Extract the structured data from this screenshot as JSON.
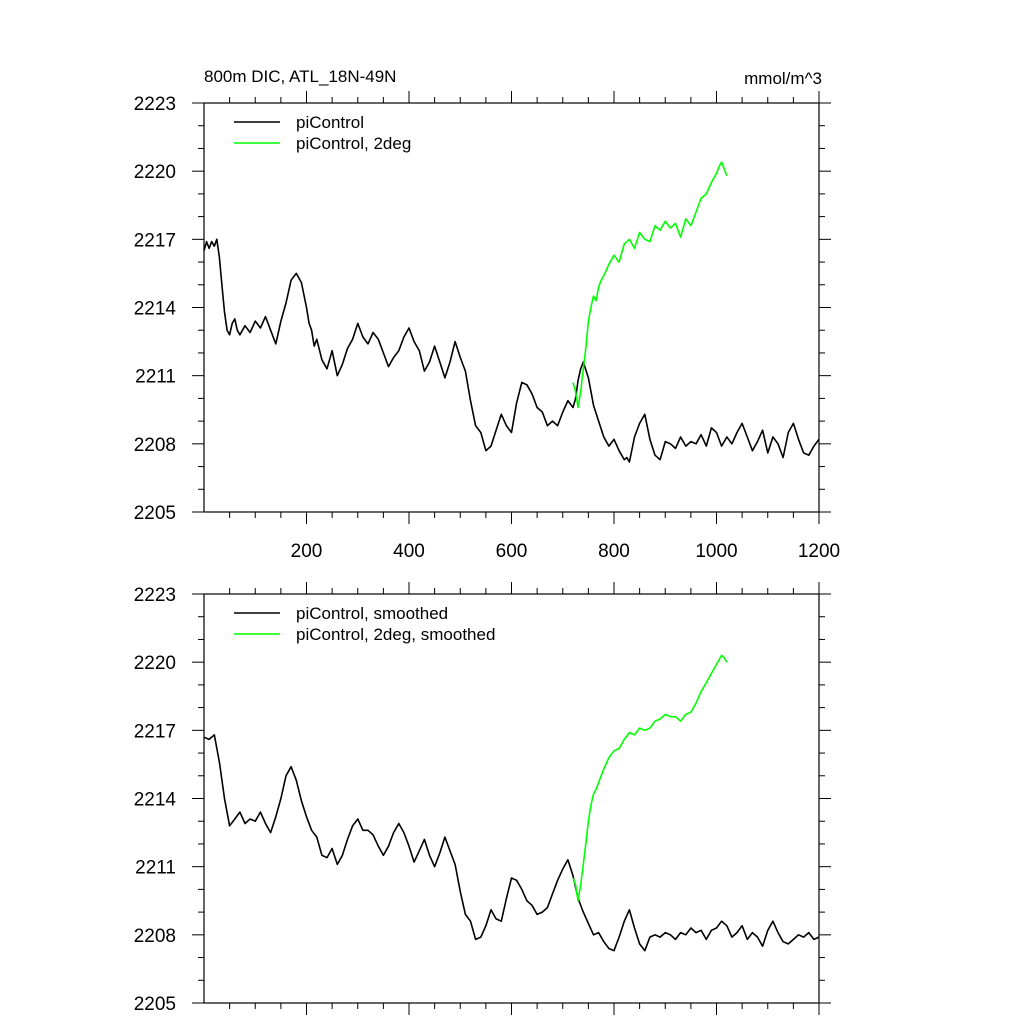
{
  "figure": {
    "title": "800m DIC, ATL_18N-49N",
    "units": "mmol/m^3"
  },
  "chart_data": [
    {
      "type": "line",
      "panel": "top",
      "title": "800m DIC, ATL_18N-49N",
      "units": "mmol/m^3",
      "xlim": [
        0,
        1200
      ],
      "ylim": [
        2205,
        2223
      ],
      "xticks": [
        200,
        400,
        600,
        800,
        1000,
        1200
      ],
      "yticks": [
        2205,
        2208,
        2211,
        2214,
        2217,
        2220,
        2223
      ],
      "legend_position": "top-left",
      "series": [
        {
          "name": "piControl",
          "color": "#000000",
          "x": [
            0,
            5,
            10,
            15,
            20,
            25,
            30,
            35,
            40,
            45,
            50,
            55,
            60,
            65,
            70,
            80,
            90,
            100,
            110,
            120,
            130,
            140,
            150,
            160,
            170,
            180,
            190,
            200,
            205,
            210,
            215,
            220,
            230,
            240,
            250,
            260,
            270,
            280,
            290,
            300,
            310,
            320,
            330,
            340,
            350,
            360,
            370,
            380,
            390,
            400,
            410,
            420,
            430,
            440,
            450,
            460,
            470,
            480,
            490,
            500,
            510,
            520,
            530,
            540,
            550,
            560,
            570,
            580,
            590,
            600,
            610,
            620,
            630,
            640,
            650,
            660,
            670,
            680,
            690,
            700,
            710,
            720,
            725,
            730,
            735,
            740,
            750,
            760,
            770,
            780,
            790,
            800,
            810,
            820,
            825,
            830,
            840,
            850,
            860,
            870,
            880,
            890,
            900,
            910,
            920,
            930,
            940,
            950,
            960,
            970,
            980,
            990,
            1000,
            1010,
            1020,
            1030,
            1040,
            1050,
            1060,
            1070,
            1080,
            1090,
            1100,
            1110,
            1120,
            1130,
            1140,
            1150,
            1160,
            1170,
            1180,
            1190,
            1200
          ],
          "values": [
            2216.5,
            2216.9,
            2216.6,
            2216.9,
            2216.7,
            2217.0,
            2216.2,
            2215.0,
            2213.8,
            2213.0,
            2212.8,
            2213.3,
            2213.5,
            2213.0,
            2212.8,
            2213.2,
            2212.9,
            2213.4,
            2213.1,
            2213.6,
            2213.0,
            2212.4,
            2213.4,
            2214.2,
            2215.2,
            2215.5,
            2215.1,
            2214.0,
            2213.3,
            2213.0,
            2212.3,
            2212.6,
            2211.7,
            2211.3,
            2212.1,
            2211.0,
            2211.5,
            2212.2,
            2212.6,
            2213.3,
            2212.7,
            2212.4,
            2212.9,
            2212.6,
            2212.0,
            2211.4,
            2211.8,
            2212.1,
            2212.7,
            2213.1,
            2212.5,
            2212.1,
            2211.2,
            2211.6,
            2212.3,
            2211.6,
            2210.9,
            2211.6,
            2212.5,
            2211.8,
            2211.2,
            2209.9,
            2208.8,
            2208.5,
            2207.7,
            2207.9,
            2208.6,
            2209.3,
            2208.8,
            2208.5,
            2209.8,
            2210.7,
            2210.6,
            2210.2,
            2209.6,
            2209.4,
            2208.8,
            2209.0,
            2208.8,
            2209.4,
            2209.9,
            2209.6,
            2210.0,
            2210.8,
            2211.3,
            2211.6,
            2210.9,
            2209.7,
            2209.0,
            2208.3,
            2207.9,
            2208.2,
            2207.7,
            2207.3,
            2207.4,
            2207.2,
            2208.3,
            2208.9,
            2209.3,
            2208.2,
            2207.5,
            2207.3,
            2208.1,
            2208.0,
            2207.8,
            2208.3,
            2207.9,
            2208.1,
            2208.0,
            2208.4,
            2207.9,
            2208.7,
            2208.5,
            2207.9,
            2208.3,
            2208.0,
            2208.5,
            2208.9,
            2208.3,
            2207.7,
            2208.1,
            2208.6,
            2207.6,
            2208.3,
            2208.0,
            2207.4,
            2208.5,
            2208.9,
            2208.2,
            2207.6,
            2207.5,
            2207.9,
            2208.2
          ],
          "note_first_segment_end": 70
        },
        {
          "name": "piControl, 2deg",
          "color": "#00ff00",
          "x": [
            720,
            725,
            730,
            735,
            740,
            745,
            750,
            755,
            760,
            765,
            770,
            775,
            780,
            790,
            800,
            810,
            820,
            830,
            840,
            850,
            860,
            870,
            880,
            890,
            900,
            910,
            920,
            930,
            940,
            950,
            960,
            970,
            980,
            990,
            1000,
            1005,
            1010,
            1015,
            1020
          ],
          "values": [
            2210.7,
            2210.3,
            2209.6,
            2210.3,
            2211.3,
            2212.2,
            2213.4,
            2214.0,
            2214.5,
            2214.3,
            2214.9,
            2215.2,
            2215.4,
            2215.9,
            2216.3,
            2216.0,
            2216.8,
            2217.0,
            2216.6,
            2217.3,
            2217.0,
            2216.9,
            2217.6,
            2217.4,
            2217.8,
            2217.5,
            2217.7,
            2217.1,
            2217.9,
            2217.6,
            2218.2,
            2218.8,
            2219.0,
            2219.5,
            2219.9,
            2220.2,
            2220.4,
            2220.1,
            2219.8
          ]
        }
      ]
    },
    {
      "type": "line",
      "panel": "bottom",
      "xlim": [
        0,
        1200
      ],
      "ylim": [
        2205,
        2223
      ],
      "xticks": [
        200,
        400,
        600,
        800,
        1000,
        1200
      ],
      "yticks": [
        2205,
        2208,
        2211,
        2214,
        2217,
        2220,
        2223
      ],
      "legend_position": "top-left",
      "series": [
        {
          "name": "piControl, smoothed",
          "color": "#000000",
          "x": [
            0,
            10,
            20,
            30,
            40,
            50,
            60,
            70,
            80,
            90,
            100,
            110,
            120,
            130,
            140,
            150,
            160,
            170,
            180,
            190,
            200,
            210,
            220,
            230,
            240,
            250,
            260,
            270,
            280,
            290,
            300,
            310,
            320,
            330,
            340,
            350,
            360,
            370,
            380,
            390,
            400,
            410,
            420,
            430,
            440,
            450,
            460,
            470,
            480,
            490,
            500,
            510,
            520,
            530,
            540,
            550,
            560,
            570,
            580,
            590,
            600,
            610,
            620,
            630,
            640,
            650,
            660,
            670,
            680,
            690,
            700,
            710,
            720,
            730,
            740,
            750,
            760,
            770,
            780,
            790,
            800,
            810,
            820,
            830,
            840,
            850,
            860,
            870,
            880,
            890,
            900,
            910,
            920,
            930,
            940,
            950,
            960,
            970,
            980,
            990,
            1000,
            1010,
            1020,
            1030,
            1040,
            1050,
            1060,
            1070,
            1080,
            1090,
            1100,
            1110,
            1120,
            1130,
            1140,
            1150,
            1160,
            1170,
            1180,
            1190,
            1200
          ],
          "values": [
            2216.7,
            2216.6,
            2216.8,
            2215.6,
            2214.0,
            2212.8,
            2213.1,
            2213.4,
            2212.9,
            2213.1,
            2213.0,
            2213.4,
            2212.9,
            2212.5,
            2213.2,
            2214.0,
            2215.0,
            2215.4,
            2214.8,
            2213.9,
            2213.2,
            2212.6,
            2212.3,
            2211.5,
            2211.4,
            2211.8,
            2211.1,
            2211.5,
            2212.2,
            2212.8,
            2213.1,
            2212.6,
            2212.6,
            2212.4,
            2211.9,
            2211.5,
            2211.9,
            2212.5,
            2212.9,
            2212.5,
            2211.9,
            2211.2,
            2211.7,
            2212.2,
            2211.5,
            2211.0,
            2211.6,
            2212.3,
            2211.7,
            2211.1,
            2209.9,
            2208.9,
            2208.6,
            2207.8,
            2207.9,
            2208.4,
            2209.1,
            2208.7,
            2208.6,
            2209.6,
            2210.5,
            2210.4,
            2210.0,
            2209.5,
            2209.3,
            2208.9,
            2209.0,
            2209.2,
            2209.8,
            2210.4,
            2210.9,
            2211.3,
            2210.6,
            2209.6,
            2209.0,
            2208.5,
            2208.0,
            2208.1,
            2207.7,
            2207.4,
            2207.3,
            2207.9,
            2208.6,
            2209.1,
            2208.3,
            2207.6,
            2207.3,
            2207.9,
            2208.0,
            2207.9,
            2208.1,
            2208.0,
            2207.8,
            2208.1,
            2208.0,
            2208.3,
            2208.1,
            2208.2,
            2207.8,
            2208.2,
            2208.3,
            2208.6,
            2208.4,
            2207.9,
            2208.1,
            2208.4,
            2207.8,
            2208.1,
            2207.9,
            2207.5,
            2208.2,
            2208.6,
            2208.1,
            2207.7,
            2207.6,
            2207.8,
            2208.0,
            2207.9,
            2208.1,
            2207.8,
            2207.9
          ]
        },
        {
          "name": "piControl, 2deg, smoothed",
          "color": "#00ff00",
          "x": [
            720,
            725,
            730,
            735,
            740,
            745,
            750,
            755,
            760,
            765,
            770,
            775,
            780,
            790,
            800,
            810,
            820,
            830,
            840,
            850,
            860,
            870,
            880,
            890,
            900,
            910,
            920,
            930,
            940,
            950,
            960,
            970,
            980,
            990,
            1000,
            1005,
            1010,
            1015,
            1020
          ],
          "values": [
            2210.5,
            2210.2,
            2209.5,
            2210.2,
            2211.1,
            2212.0,
            2213.0,
            2213.7,
            2214.2,
            2214.4,
            2214.7,
            2215.0,
            2215.3,
            2215.8,
            2216.1,
            2216.2,
            2216.6,
            2216.9,
            2216.8,
            2217.1,
            2217.0,
            2217.1,
            2217.4,
            2217.5,
            2217.7,
            2217.6,
            2217.6,
            2217.4,
            2217.7,
            2217.8,
            2218.2,
            2218.7,
            2219.1,
            2219.5,
            2219.9,
            2220.1,
            2220.3,
            2220.2,
            2220.0
          ]
        }
      ]
    }
  ]
}
